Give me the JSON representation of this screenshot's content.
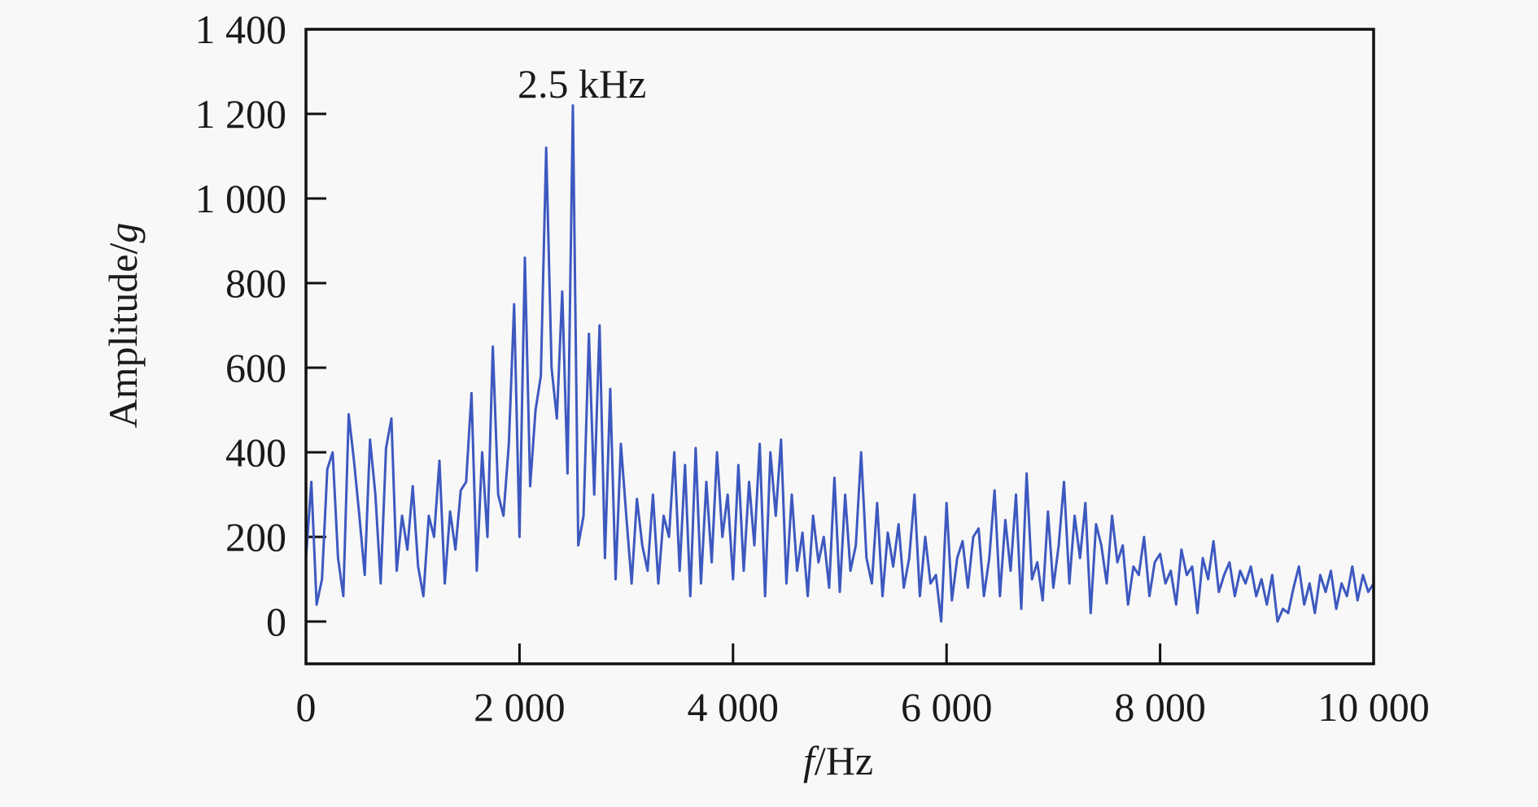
{
  "chart_data": {
    "type": "line",
    "title": "",
    "xlabel": "f/Hz",
    "xlabel_parts": {
      "italic": "f",
      "rest": "/Hz"
    },
    "ylabel": "Amplitude/g",
    "ylabel_parts": {
      "rest": "Amplitude/",
      "italic": "g"
    },
    "xlim": [
      0,
      10000
    ],
    "ylim": [
      -100,
      1400
    ],
    "xticks": [
      0,
      2000,
      4000,
      6000,
      8000,
      10000
    ],
    "xtick_labels": [
      "0",
      "2 000",
      "4 000",
      "6 000",
      "8 000",
      "10 000"
    ],
    "yticks": [
      0,
      200,
      400,
      600,
      800,
      1000,
      1200,
      1400
    ],
    "ytick_labels": [
      "0",
      "200",
      "400",
      "600",
      "800",
      "1 000",
      "1 200",
      "1 400"
    ],
    "grid": false,
    "annotations": [
      {
        "text": "2.5 kHz",
        "x": 2500,
        "y": 1220
      }
    ],
    "series": [
      {
        "name": "spectrum",
        "color": "#3d59c0",
        "x_start": 0,
        "x_step": 50,
        "values": [
          150,
          330,
          40,
          100,
          360,
          400,
          150,
          60,
          490,
          380,
          250,
          110,
          430,
          300,
          90,
          410,
          480,
          120,
          250,
          170,
          320,
          130,
          60,
          250,
          200,
          380,
          90,
          260,
          170,
          310,
          330,
          540,
          120,
          400,
          200,
          650,
          300,
          250,
          420,
          750,
          200,
          860,
          320,
          500,
          580,
          1120,
          600,
          480,
          780,
          350,
          1220,
          180,
          250,
          680,
          300,
          700,
          150,
          550,
          100,
          420,
          250,
          90,
          290,
          180,
          120,
          300,
          90,
          250,
          200,
          400,
          120,
          370,
          60,
          410,
          90,
          330,
          140,
          400,
          200,
          300,
          100,
          370,
          120,
          330,
          180,
          420,
          60,
          400,
          250,
          430,
          90,
          300,
          120,
          210,
          60,
          250,
          140,
          200,
          80,
          340,
          70,
          300,
          120,
          180,
          400,
          150,
          90,
          280,
          60,
          210,
          130,
          230,
          80,
          150,
          300,
          60,
          200,
          90,
          110,
          0,
          280,
          50,
          150,
          190,
          80,
          200,
          220,
          60,
          150,
          310,
          60,
          240,
          120,
          300,
          30,
          350,
          100,
          140,
          50,
          260,
          80,
          180,
          330,
          90,
          250,
          150,
          280,
          20,
          230,
          180,
          90,
          250,
          140,
          180,
          40,
          130,
          110,
          200,
          60,
          140,
          160,
          90,
          120,
          40,
          170,
          110,
          130,
          20,
          150,
          100,
          190,
          70,
          110,
          140,
          60,
          120,
          90,
          130,
          60,
          100,
          40,
          110,
          0,
          30,
          20,
          80,
          130,
          40,
          90,
          20,
          110,
          70,
          120,
          30,
          90,
          60,
          130,
          50,
          110,
          70,
          90
        ]
      }
    ]
  }
}
